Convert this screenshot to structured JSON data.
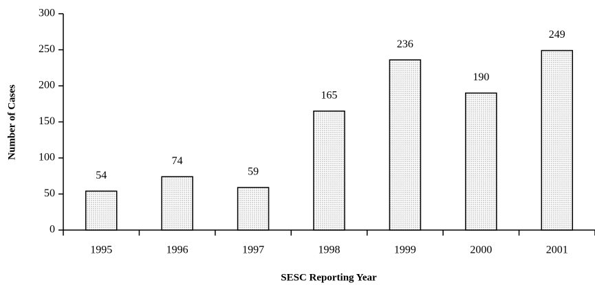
{
  "chart_data": {
    "type": "bar",
    "x_label": "SESC Reporting Year",
    "y_label": "Number of Cases",
    "categories": [
      "1995",
      "1996",
      "1997",
      "1998",
      "1999",
      "2000",
      "2001"
    ],
    "values": [
      54,
      74,
      59,
      165,
      236,
      190,
      249
    ],
    "color": "#d8d8d8",
    "ylim": [
      0,
      300
    ],
    "yticks": [
      0,
      50,
      100,
      150,
      200,
      250,
      300
    ],
    "grid": false
  }
}
